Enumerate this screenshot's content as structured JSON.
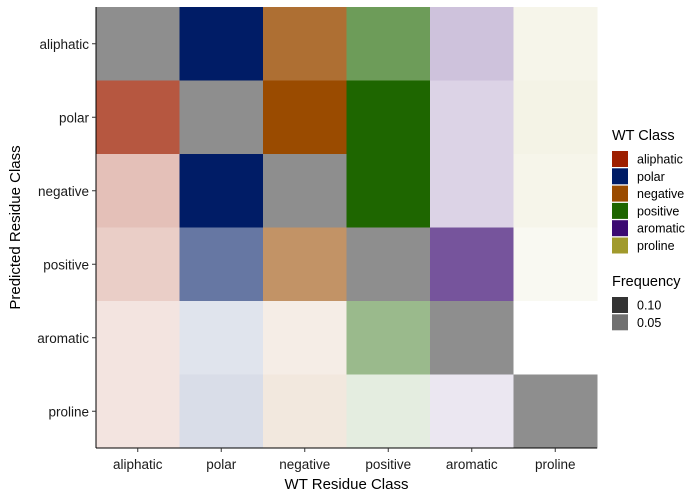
{
  "chart_data": {
    "type": "heatmap",
    "xlabel": "WT Residue Class",
    "ylabel": "Predicted Residue Class",
    "x_categories": [
      "aliphatic",
      "polar",
      "negative",
      "positive",
      "aromatic",
      "proline"
    ],
    "y_categories": [
      "aliphatic",
      "polar",
      "negative",
      "positive",
      "aromatic",
      "proline"
    ],
    "class_colors": {
      "aliphatic": "#9e1f00",
      "polar": "#001c66",
      "negative": "#9a4b00",
      "positive": "#1e6600",
      "aromatic": "#3b0a72",
      "proline": "#a19a2c"
    },
    "diagonal_color": "#8e8e8e",
    "cells": [
      {
        "wt": "aliphatic",
        "predicted": "aliphatic",
        "diagonal": true
      },
      {
        "wt": "aliphatic",
        "predicted": "polar",
        "alpha": 0.75
      },
      {
        "wt": "aliphatic",
        "predicted": "negative",
        "alpha": 0.28
      },
      {
        "wt": "aliphatic",
        "predicted": "positive",
        "alpha": 0.22
      },
      {
        "wt": "aliphatic",
        "predicted": "aromatic",
        "alpha": 0.12
      },
      {
        "wt": "aliphatic",
        "predicted": "proline",
        "alpha": 0.12
      },
      {
        "wt": "polar",
        "predicted": "aliphatic",
        "alpha": 1.0
      },
      {
        "wt": "polar",
        "predicted": "polar",
        "diagonal": true
      },
      {
        "wt": "polar",
        "predicted": "negative",
        "alpha": 1.0
      },
      {
        "wt": "polar",
        "predicted": "positive",
        "alpha": 0.6
      },
      {
        "wt": "polar",
        "predicted": "aromatic",
        "alpha": 0.12
      },
      {
        "wt": "polar",
        "predicted": "proline",
        "alpha": 0.15
      },
      {
        "wt": "negative",
        "predicted": "aliphatic",
        "alpha": 0.8
      },
      {
        "wt": "negative",
        "predicted": "polar",
        "alpha": 1.0
      },
      {
        "wt": "negative",
        "predicted": "negative",
        "diagonal": true
      },
      {
        "wt": "negative",
        "predicted": "positive",
        "alpha": 0.6
      },
      {
        "wt": "negative",
        "predicted": "aromatic",
        "alpha": 0.1
      },
      {
        "wt": "negative",
        "predicted": "proline",
        "alpha": 0.13
      },
      {
        "wt": "positive",
        "predicted": "aliphatic",
        "alpha": 0.65
      },
      {
        "wt": "positive",
        "predicted": "polar",
        "alpha": 1.0
      },
      {
        "wt": "positive",
        "predicted": "negative",
        "alpha": 1.0
      },
      {
        "wt": "positive",
        "predicted": "positive",
        "diagonal": true
      },
      {
        "wt": "positive",
        "predicted": "aromatic",
        "alpha": 0.45
      },
      {
        "wt": "positive",
        "predicted": "proline",
        "alpha": 0.12
      },
      {
        "wt": "aromatic",
        "predicted": "aliphatic",
        "alpha": 0.25
      },
      {
        "wt": "aromatic",
        "predicted": "polar",
        "alpha": 0.18
      },
      {
        "wt": "aromatic",
        "predicted": "negative",
        "alpha": 0.18
      },
      {
        "wt": "aromatic",
        "predicted": "positive",
        "alpha": 0.7
      },
      {
        "wt": "aromatic",
        "predicted": "aromatic",
        "diagonal": true
      },
      {
        "wt": "aromatic",
        "predicted": "proline",
        "alpha": 0.1
      },
      {
        "wt": "proline",
        "predicted": "aliphatic",
        "alpha": 0.1
      },
      {
        "wt": "proline",
        "predicted": "polar",
        "alpha": 0.12
      },
      {
        "wt": "proline",
        "predicted": "negative",
        "alpha": 0.1
      },
      {
        "wt": "proline",
        "predicted": "positive",
        "alpha": 0.06
      },
      {
        "wt": "proline",
        "predicted": "aromatic",
        "missing": true
      },
      {
        "wt": "proline",
        "predicted": "proline",
        "diagonal": true
      }
    ],
    "legend": {
      "wt_class": {
        "title": "WT Class",
        "items": [
          {
            "label": "aliphatic",
            "color": "#9e1f00"
          },
          {
            "label": "polar",
            "color": "#001c66"
          },
          {
            "label": "negative",
            "color": "#9a4b00"
          },
          {
            "label": "positive",
            "color": "#1e6600"
          },
          {
            "label": "aromatic",
            "color": "#3b0a72"
          },
          {
            "label": "proline",
            "color": "#a19a2c"
          }
        ]
      },
      "frequency": {
        "title": "Frequency",
        "items": [
          {
            "label": "0.10",
            "color": "#333333"
          },
          {
            "label": "0.05",
            "color": "#707070"
          }
        ]
      }
    },
    "legend_position": "right",
    "grid": false
  }
}
